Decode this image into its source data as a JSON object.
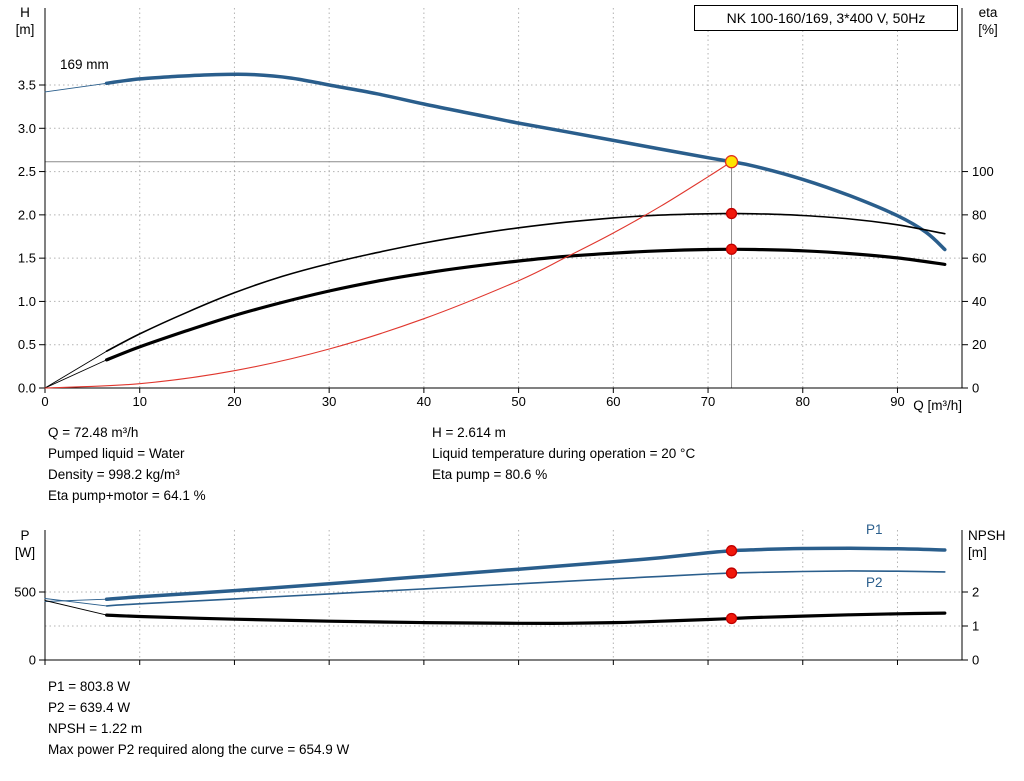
{
  "title_box": "NK 100-160/169, 3*400 V, 50Hz",
  "labels": {
    "h_title": "H",
    "h_unit": "[m]",
    "eta_title": "eta",
    "eta_unit": "[%]",
    "q_axis": "Q [m³/h]",
    "p_title": "P",
    "p_unit": "[W]",
    "npsh_title": "NPSH",
    "npsh_unit": "[m]",
    "impeller": "169 mm",
    "p1": "P1",
    "p2": "P2"
  },
  "colors": {
    "curve_blue": "#2a5e8c",
    "curve_black": "#000000",
    "system_red": "#e0372e",
    "marker_red": "#f1180b",
    "duty_yellow": "#ffe400",
    "grid_gray": "#b3b3b3"
  },
  "info_top": {
    "left": [
      "Q = 72.48 m³/h",
      "Pumped liquid = Water",
      "Density = 998.2 kg/m³",
      "Eta pump+motor = 64.1 %"
    ],
    "right": [
      "H = 2.614 m",
      "Liquid temperature during operation = 20 °C",
      "Eta pump = 80.6 %"
    ]
  },
  "info_bottom": [
    "P1 = 803.8 W",
    "P2 = 639.4 W",
    "NPSH = 1.22 m",
    "Max power P2 required along the curve = 654.9 W"
  ],
  "chart_data": [
    {
      "type": "line",
      "title": "NK 100-160/169, 3*400 V, 50Hz",
      "xlabel": "Q [m³/h]",
      "ylabel_left": "H [m]",
      "ylabel_right": "eta [%]",
      "xlim": [
        0,
        96.8
      ],
      "ylim_left": [
        0,
        4.4
      ],
      "ylim_right": [
        0,
        100
      ],
      "grid": true,
      "legend": "none",
      "x_ticks": [
        {
          "v": 0,
          "t": "0"
        },
        {
          "v": 10,
          "t": "10"
        },
        {
          "v": 20,
          "t": "20"
        },
        {
          "v": 30,
          "t": "30"
        },
        {
          "v": 40,
          "t": "40"
        },
        {
          "v": 50,
          "t": "50"
        },
        {
          "v": 60,
          "t": "60"
        },
        {
          "v": 70,
          "t": "70"
        },
        {
          "v": 80,
          "t": "80"
        },
        {
          "v": 90,
          "t": "90"
        }
      ],
      "y_left_ticks": [
        {
          "v": 0,
          "t": "0.0"
        },
        {
          "v": 0.5,
          "t": "0.5"
        },
        {
          "v": 1,
          "t": "1.0"
        },
        {
          "v": 1.5,
          "t": "1.5"
        },
        {
          "v": 2,
          "t": "2.0"
        },
        {
          "v": 2.5,
          "t": "2.5"
        },
        {
          "v": 3,
          "t": "3.0"
        },
        {
          "v": 3.5,
          "t": "3.5"
        }
      ],
      "y_right_ticks": [
        {
          "v": 0,
          "t": "0"
        },
        {
          "v": 20,
          "t": "20"
        },
        {
          "v": 40,
          "t": "40"
        },
        {
          "v": 60,
          "t": "60"
        },
        {
          "v": 80,
          "t": "80"
        },
        {
          "v": 100,
          "t": "100"
        }
      ],
      "grid_v": [
        10,
        20,
        30,
        40,
        50,
        60,
        70,
        80,
        90
      ],
      "grid_h_H": [
        0.5,
        1,
        1.5,
        2,
        2.5,
        3,
        3.5
      ],
      "crosshair": {
        "q": 72.48,
        "h": 2.614
      },
      "series": [
        {
          "name": "head-169mm",
          "label": "169 mm",
          "axis": "H",
          "color": "#2a5e8c",
          "width": 3.5,
          "lead_in": [
            [
              0,
              3.42
            ],
            [
              6.5,
              3.52
            ]
          ],
          "points": [
            [
              6.5,
              3.52
            ],
            [
              10,
              3.57
            ],
            [
              14,
              3.6
            ],
            [
              18,
              3.62
            ],
            [
              22,
              3.62
            ],
            [
              26,
              3.58
            ],
            [
              30,
              3.5
            ],
            [
              35,
              3.4
            ],
            [
              40,
              3.28
            ],
            [
              45,
              3.17
            ],
            [
              50,
              3.06
            ],
            [
              55,
              2.96
            ],
            [
              60,
              2.86
            ],
            [
              65,
              2.76
            ],
            [
              70,
              2.66
            ],
            [
              72.48,
              2.614
            ],
            [
              75,
              2.56
            ],
            [
              80,
              2.41
            ],
            [
              85,
              2.22
            ],
            [
              90,
              1.99
            ],
            [
              93,
              1.8
            ],
            [
              95,
              1.6
            ]
          ]
        },
        {
          "name": "eta-pump",
          "axis": "eta",
          "color": "#000000",
          "width": 1.6,
          "lead_in": [
            [
              0,
              0
            ],
            [
              6.5,
              17
            ]
          ],
          "points": [
            [
              6.5,
              17
            ],
            [
              10,
              25
            ],
            [
              15,
              35
            ],
            [
              20,
              44
            ],
            [
              25,
              51.5
            ],
            [
              30,
              57.5
            ],
            [
              35,
              62.5
            ],
            [
              40,
              67
            ],
            [
              45,
              70.8
            ],
            [
              50,
              74
            ],
            [
              55,
              76.6
            ],
            [
              60,
              78.6
            ],
            [
              65,
              79.9
            ],
            [
              70,
              80.5
            ],
            [
              72.48,
              80.6
            ],
            [
              75,
              80.5
            ],
            [
              80,
              79.7
            ],
            [
              85,
              78.1
            ],
            [
              90,
              75.4
            ],
            [
              95,
              71.3
            ]
          ]
        },
        {
          "name": "eta-pump-motor",
          "axis": "eta",
          "color": "#000000",
          "width": 3.2,
          "lead_in": [
            [
              0,
              0
            ],
            [
              6.5,
              13
            ]
          ],
          "points": [
            [
              6.5,
              13
            ],
            [
              10,
              19
            ],
            [
              15,
              26.5
            ],
            [
              20,
              33.5
            ],
            [
              25,
              39.5
            ],
            [
              30,
              44.8
            ],
            [
              35,
              49.3
            ],
            [
              40,
              53
            ],
            [
              45,
              56.1
            ],
            [
              50,
              58.7
            ],
            [
              55,
              60.8
            ],
            [
              60,
              62.3
            ],
            [
              65,
              63.4
            ],
            [
              70,
              64
            ],
            [
              72.48,
              64.1
            ],
            [
              75,
              64
            ],
            [
              80,
              63.4
            ],
            [
              85,
              62.1
            ],
            [
              90,
              60.1
            ],
            [
              95,
              57.1
            ]
          ]
        },
        {
          "name": "system-curve",
          "axis": "H",
          "color": "#e0372e",
          "width": 1.1,
          "points": [
            [
              0,
              0
            ],
            [
              10,
              0.05
            ],
            [
              20,
              0.2
            ],
            [
              30,
              0.45
            ],
            [
              40,
              0.8
            ],
            [
              50,
              1.24
            ],
            [
              55,
              1.51
            ],
            [
              60,
              1.79
            ],
            [
              65,
              2.1
            ],
            [
              70,
              2.44
            ],
            [
              72.48,
              2.614
            ]
          ]
        }
      ],
      "markers": [
        {
          "q": 72.48,
          "v": 2.614,
          "axis": "H",
          "fill": "#ffe400",
          "stroke": "#e03020",
          "r": 6,
          "name": "duty-point"
        },
        {
          "q": 72.48,
          "v": 80.6,
          "axis": "eta",
          "fill": "#f1180b",
          "stroke": "#c00000",
          "r": 5,
          "name": "eta-pump-point"
        },
        {
          "q": 72.48,
          "v": 64.1,
          "axis": "eta",
          "fill": "#f1180b",
          "stroke": "#c00000",
          "r": 5,
          "name": "eta-pump-motor-point"
        }
      ]
    },
    {
      "type": "line",
      "title": "",
      "xlabel": "",
      "ylabel_left": "P [W]",
      "ylabel_right": "NPSH [m]",
      "xlim": [
        0,
        96.8
      ],
      "ylim_left": [
        0,
        956
      ],
      "ylim_right": [
        0,
        3.8
      ],
      "grid": true,
      "legend": "inline (P1, P2)",
      "x_ticks": [
        {
          "v": 0,
          "t": ""
        },
        {
          "v": 10,
          "t": ""
        },
        {
          "v": 20,
          "t": ""
        },
        {
          "v": 30,
          "t": ""
        },
        {
          "v": 40,
          "t": ""
        },
        {
          "v": 50,
          "t": ""
        },
        {
          "v": 60,
          "t": ""
        },
        {
          "v": 70,
          "t": ""
        },
        {
          "v": 80,
          "t": ""
        },
        {
          "v": 90,
          "t": ""
        }
      ],
      "y_left_ticks": [
        {
          "v": 0,
          "t": "0"
        },
        {
          "v": 500,
          "t": "500"
        }
      ],
      "y_right_ticks": [
        {
          "v": 0,
          "t": "0"
        },
        {
          "v": 1,
          "t": "1"
        },
        {
          "v": 2,
          "t": "2"
        }
      ],
      "grid_v": [
        10,
        20,
        30,
        40,
        50,
        60,
        70,
        80,
        90
      ],
      "grid_h_P": [
        500
      ],
      "grid_h_NPSH": [
        1
      ],
      "series": [
        {
          "name": "p1",
          "label": "P1",
          "axis": "P",
          "color": "#2a5e8c",
          "width": 3.5,
          "lead_in": [
            [
              0,
              430
            ],
            [
              6.5,
              447
            ]
          ],
          "points": [
            [
              6.5,
              447
            ],
            [
              10,
              465
            ],
            [
              20,
              510
            ],
            [
              30,
              560
            ],
            [
              40,
              614
            ],
            [
              50,
              668
            ],
            [
              60,
              722
            ],
            [
              65,
              752
            ],
            [
              70,
              788
            ],
            [
              72.48,
              803.8
            ],
            [
              75,
              811
            ],
            [
              80,
              820
            ],
            [
              85,
              822
            ],
            [
              90,
              818
            ],
            [
              95,
              809
            ]
          ]
        },
        {
          "name": "p2",
          "label": "P2",
          "axis": "P",
          "color": "#2a5e8c",
          "width": 1.6,
          "lead_in": [
            [
              0,
              452
            ],
            [
              6.5,
              398
            ]
          ],
          "points": [
            [
              6.5,
              398
            ],
            [
              10,
              413
            ],
            [
              20,
              449
            ],
            [
              30,
              486
            ],
            [
              40,
              523
            ],
            [
              50,
              560
            ],
            [
              60,
              597
            ],
            [
              65,
              615
            ],
            [
              70,
              632
            ],
            [
              72.48,
              639.4
            ],
            [
              75,
              644
            ],
            [
              80,
              651
            ],
            [
              85,
              654.9
            ],
            [
              90,
              653
            ],
            [
              95,
              648
            ]
          ]
        },
        {
          "name": "npsh",
          "label": "NPSH",
          "axis": "NPSH",
          "color": "#000000",
          "width": 3.2,
          "lead_in": [
            [
              0,
              1.75
            ],
            [
              6.5,
              1.32
            ]
          ],
          "points": [
            [
              6.5,
              1.32
            ],
            [
              10,
              1.28
            ],
            [
              20,
              1.2
            ],
            [
              30,
              1.14
            ],
            [
              40,
              1.1
            ],
            [
              50,
              1.08
            ],
            [
              55,
              1.08
            ],
            [
              60,
              1.1
            ],
            [
              65,
              1.14
            ],
            [
              70,
              1.19
            ],
            [
              72.48,
              1.22
            ],
            [
              75,
              1.25
            ],
            [
              80,
              1.29
            ],
            [
              85,
              1.33
            ],
            [
              90,
              1.36
            ],
            [
              95,
              1.38
            ]
          ]
        }
      ],
      "markers": [
        {
          "q": 72.48,
          "v": 803.8,
          "axis": "P",
          "fill": "#f1180b",
          "stroke": "#c00000",
          "r": 5,
          "name": "p1-point"
        },
        {
          "q": 72.48,
          "v": 639.4,
          "axis": "P",
          "fill": "#f1180b",
          "stroke": "#c00000",
          "r": 5,
          "name": "p2-point"
        },
        {
          "q": 72.48,
          "v": 1.22,
          "axis": "NPSH",
          "fill": "#f1180b",
          "stroke": "#c00000",
          "r": 5,
          "name": "npsh-point"
        }
      ]
    }
  ]
}
